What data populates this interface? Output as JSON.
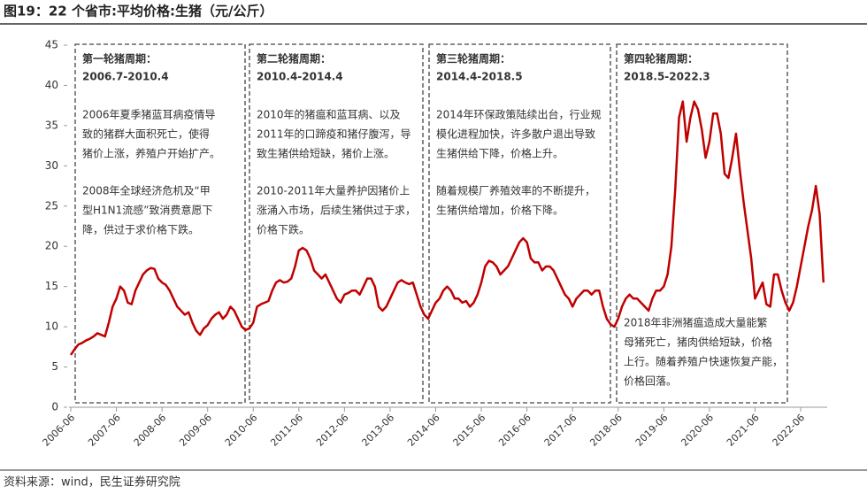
{
  "chart_data": {
    "type": "line",
    "title": "图19：22 个省市:平均价格:生猪（元/公斤）",
    "source": "资料来源：wind，民生证券研究院",
    "color": "#c00000",
    "ylim": [
      0,
      45
    ],
    "yticks": [
      0,
      5,
      10,
      15,
      20,
      25,
      30,
      35,
      40,
      45
    ],
    "xticks": [
      "2006-06",
      "2007-06",
      "2008-06",
      "2009-06",
      "2010-06",
      "2011-06",
      "2012-06",
      "2013-06",
      "2014-06",
      "2015-06",
      "2016-06",
      "2017-06",
      "2018-06",
      "2019-06",
      "2020-06",
      "2021-06",
      "2022-06"
    ],
    "categories": [
      "2006-06",
      "2006-07",
      "2006-08",
      "2006-09",
      "2006-10",
      "2006-11",
      "2006-12",
      "2007-01",
      "2007-02",
      "2007-03",
      "2007-04",
      "2007-05",
      "2007-06",
      "2007-07",
      "2007-08",
      "2007-09",
      "2007-10",
      "2007-11",
      "2007-12",
      "2008-01",
      "2008-02",
      "2008-03",
      "2008-04",
      "2008-05",
      "2008-06",
      "2008-07",
      "2008-08",
      "2008-09",
      "2008-10",
      "2008-11",
      "2008-12",
      "2009-01",
      "2009-02",
      "2009-03",
      "2009-04",
      "2009-05",
      "2009-06",
      "2009-07",
      "2009-08",
      "2009-09",
      "2009-10",
      "2009-11",
      "2009-12",
      "2010-01",
      "2010-02",
      "2010-03",
      "2010-04",
      "2010-05",
      "2010-06",
      "2010-07",
      "2010-08",
      "2010-09",
      "2010-10",
      "2010-11",
      "2010-12",
      "2011-01",
      "2011-02",
      "2011-03",
      "2011-04",
      "2011-05",
      "2011-06",
      "2011-07",
      "2011-08",
      "2011-09",
      "2011-10",
      "2011-11",
      "2011-12",
      "2012-01",
      "2012-02",
      "2012-03",
      "2012-04",
      "2012-05",
      "2012-06",
      "2012-07",
      "2012-08",
      "2012-09",
      "2012-10",
      "2012-11",
      "2012-12",
      "2013-01",
      "2013-02",
      "2013-03",
      "2013-04",
      "2013-05",
      "2013-06",
      "2013-07",
      "2013-08",
      "2013-09",
      "2013-10",
      "2013-11",
      "2013-12",
      "2014-01",
      "2014-02",
      "2014-03",
      "2014-04",
      "2014-05",
      "2014-06",
      "2014-07",
      "2014-08",
      "2014-09",
      "2014-10",
      "2014-11",
      "2014-12",
      "2015-01",
      "2015-02",
      "2015-03",
      "2015-04",
      "2015-05",
      "2015-06",
      "2015-07",
      "2015-08",
      "2015-09",
      "2015-10",
      "2015-11",
      "2015-12",
      "2016-01",
      "2016-02",
      "2016-03",
      "2016-04",
      "2016-05",
      "2016-06",
      "2016-07",
      "2016-08",
      "2016-09",
      "2016-10",
      "2016-11",
      "2016-12",
      "2017-01",
      "2017-02",
      "2017-03",
      "2017-04",
      "2017-05",
      "2017-06",
      "2017-07",
      "2017-08",
      "2017-09",
      "2017-10",
      "2017-11",
      "2017-12",
      "2018-01",
      "2018-02",
      "2018-03",
      "2018-04",
      "2018-05",
      "2018-06",
      "2018-07",
      "2018-08",
      "2018-09",
      "2018-10",
      "2018-11",
      "2018-12",
      "2019-01",
      "2019-02",
      "2019-03",
      "2019-04",
      "2019-05",
      "2019-06",
      "2019-07",
      "2019-08",
      "2019-09",
      "2019-10",
      "2019-11",
      "2019-12",
      "2020-01",
      "2020-02",
      "2020-03",
      "2020-04",
      "2020-05",
      "2020-06",
      "2020-07",
      "2020-08",
      "2020-09",
      "2020-10",
      "2020-11",
      "2020-12",
      "2021-01",
      "2021-02",
      "2021-03",
      "2021-04",
      "2021-05",
      "2021-06",
      "2021-07",
      "2021-08",
      "2021-09",
      "2021-10",
      "2021-11",
      "2021-12",
      "2022-01",
      "2022-02",
      "2022-03",
      "2022-04",
      "2022-05",
      "2022-06",
      "2022-07",
      "2022-08",
      "2022-09",
      "2022-10",
      "2022-11",
      "2022-12"
    ],
    "values": [
      6.5,
      7.2,
      7.8,
      8.0,
      8.3,
      8.5,
      8.8,
      9.2,
      9.0,
      8.8,
      10.5,
      12.5,
      13.5,
      15.0,
      14.5,
      13.0,
      12.8,
      14.5,
      15.5,
      16.5,
      17.0,
      17.3,
      17.2,
      16.0,
      15.5,
      15.2,
      14.5,
      13.5,
      12.5,
      12.0,
      11.5,
      11.8,
      10.5,
      9.5,
      9.0,
      9.8,
      10.2,
      11.0,
      11.5,
      11.8,
      11.0,
      11.5,
      12.5,
      12.0,
      11.0,
      10.0,
      9.6,
      9.8,
      10.5,
      12.5,
      12.8,
      13.0,
      13.2,
      14.5,
      15.5,
      15.8,
      15.5,
      15.6,
      16.0,
      17.5,
      19.5,
      19.8,
      19.5,
      18.5,
      17.0,
      16.5,
      16.0,
      16.5,
      15.5,
      14.5,
      13.5,
      13.0,
      14.0,
      14.2,
      14.5,
      14.5,
      14.0,
      15.0,
      16.0,
      16.0,
      15.0,
      12.5,
      12.0,
      12.5,
      13.5,
      14.5,
      15.5,
      15.8,
      15.5,
      15.3,
      15.5,
      14.0,
      12.5,
      11.5,
      11.0,
      12.0,
      13.0,
      13.5,
      14.5,
      15.0,
      14.5,
      13.5,
      13.5,
      13.0,
      13.2,
      12.5,
      13.0,
      14.0,
      15.5,
      17.5,
      18.2,
      18.0,
      17.5,
      16.5,
      17.0,
      17.5,
      18.5,
      19.5,
      20.5,
      21.0,
      20.5,
      18.5,
      18.0,
      18.0,
      17.0,
      17.5,
      17.5,
      17.0,
      16.0,
      15.0,
      14.0,
      13.5,
      12.5,
      13.5,
      14.0,
      14.5,
      14.5,
      14.0,
      14.5,
      14.5,
      12.5,
      11.0,
      10.3,
      10.0,
      11.0,
      12.5,
      13.5,
      14.0,
      13.5,
      13.5,
      13.0,
      12.5,
      12.0,
      13.5,
      14.5,
      14.5,
      15.0,
      16.5,
      20.0,
      27.0,
      36.0,
      38.0,
      33.0,
      36.0,
      38.0,
      37.0,
      34.5,
      31.0,
      33.0,
      36.5,
      36.5,
      34.0,
      29.0,
      28.5,
      31.0,
      34.0,
      29.5,
      25.5,
      22.0,
      18.5,
      13.5,
      14.5,
      15.5,
      12.8,
      12.5,
      16.5,
      16.5,
      14.5,
      13.0,
      12.0,
      13.0,
      15.0,
      17.5,
      20.0,
      22.5,
      24.5,
      27.5,
      24.0,
      15.5
    ],
    "annotations": [
      {
        "title": "第一轮猪周期：",
        "period": "2006.7-2010.4",
        "paragraphs": [
          [
            "2006年夏季猪蓝耳病疫情导",
            "致的猪群大面积死亡，使得",
            "猪价上涨，养殖户开始扩产。"
          ],
          [
            "2008年全球经济危机及“甲",
            "型H1N1流感”致消费意愿下",
            "降，供过于求价格下跌。"
          ]
        ]
      },
      {
        "title": "第二轮猪周期：",
        "period": "2010.4-2014.4",
        "paragraphs": [
          [
            "2010年的猪瘟和蓝耳病、以及",
            "2011年的口蹄疫和猪仔腹泻，导",
            "致生猪供给短缺，猪价上涨。"
          ],
          [
            "2010-2011年大量养护因猪价上",
            "涨涌入市场，后续生猪供过于求，",
            "价格下跌。"
          ]
        ]
      },
      {
        "title": "第三轮猪周期：",
        "period": "2014.4-2018.5",
        "paragraphs": [
          [
            "2014年环保政策陆续出台，行业规",
            "模化进程加快，许多散户退出导致",
            "生猪供给下降，价格上升。"
          ],
          [
            "随着规模厂养殖效率的不断提升，",
            "生猪供给增加，价格下降。"
          ]
        ]
      },
      {
        "title": "第四轮猪周期：",
        "period": "2018.5-2022.3",
        "paragraphs": [
          [
            "2018年非洲猪瘟造成大量能繁",
            "母猪死亡，猪肉供给短缺，价格",
            "上行。随着养殖户快速恢复产能，",
            "价格回落。"
          ]
        ]
      }
    ]
  }
}
